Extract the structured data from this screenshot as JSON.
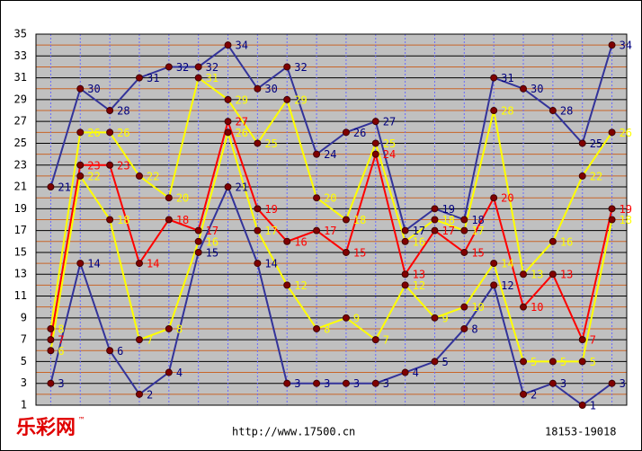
{
  "chart_data": {
    "type": "line",
    "categories": [
      null,
      null,
      null,
      null,
      null,
      null,
      null,
      null,
      null,
      null,
      null,
      null,
      null,
      null,
      null,
      null,
      null,
      null,
      null,
      null
    ],
    "series": [
      {
        "color": "#33339a",
        "label_color": "#000080",
        "values": [
          21,
          30,
          28,
          31,
          32,
          32,
          34,
          30,
          32,
          24,
          26,
          27,
          17,
          19,
          18,
          31,
          30,
          28,
          25,
          34
        ]
      },
      {
        "color": "#ffff00",
        "label_color": "#ffff00",
        "values": [
          8,
          26,
          26,
          22,
          20,
          31,
          29,
          25,
          29,
          20,
          18,
          25,
          16,
          18,
          17,
          28,
          13,
          16,
          22,
          26
        ]
      },
      {
        "color": "#ff0000",
        "label_color": "#ff0000",
        "values": [
          7,
          23,
          23,
          14,
          18,
          17,
          27,
          19,
          16,
          17,
          15,
          24,
          13,
          17,
          15,
          20,
          10,
          13,
          7,
          19
        ]
      },
      {
        "color": "#ffff00",
        "label_color": "#ffff00",
        "values": [
          6,
          22,
          18,
          7,
          8,
          16,
          26,
          17,
          12,
          8,
          9,
          7,
          12,
          9,
          10,
          14,
          5,
          5,
          5,
          18
        ]
      },
      {
        "color": "#33339a",
        "label_color": "#000080",
        "values": [
          3,
          14,
          6,
          2,
          4,
          15,
          21,
          14,
          3,
          3,
          3,
          3,
          4,
          5,
          8,
          12,
          2,
          3,
          1,
          3
        ]
      }
    ],
    "ylim": [
      1,
      35
    ],
    "yticks": [
      1,
      3,
      5,
      7,
      9,
      11,
      13,
      15,
      17,
      19,
      21,
      23,
      25,
      27,
      29,
      31,
      33,
      35
    ],
    "grid": true,
    "footer": {
      "logo": "乐彩网",
      "trademark": "™",
      "url": "http://www.17500.cn",
      "range": "18153-19018"
    }
  }
}
